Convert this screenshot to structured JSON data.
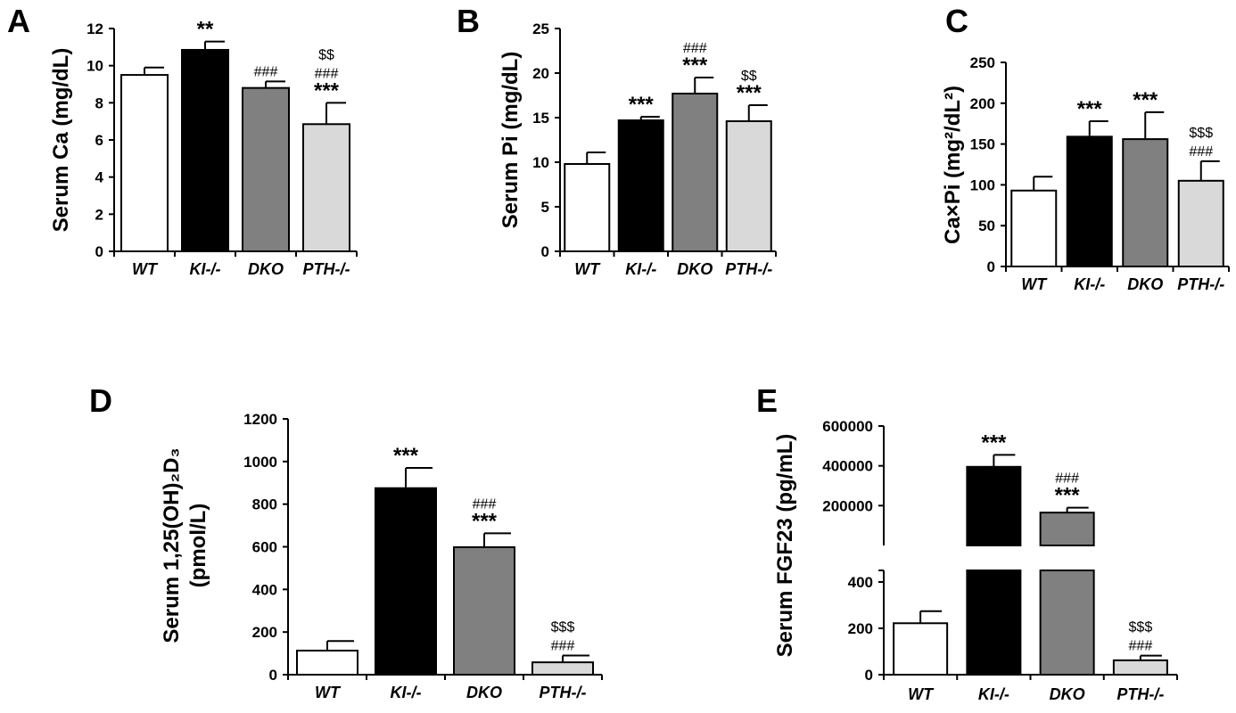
{
  "chart_data": [
    {
      "id": "A",
      "panel": "A",
      "type": "bar",
      "ylabel": "Serum Ca (mg/dL)",
      "ylim": [
        0,
        12
      ],
      "yticks": [
        "0",
        "2",
        "4",
        "6",
        "8",
        "10",
        "12"
      ],
      "categories": [
        "WT",
        "KI-/-",
        "DKO",
        "PTH-/-"
      ],
      "values": [
        9.5,
        10.85,
        8.8,
        6.85
      ],
      "errors": [
        0.4,
        0.45,
        0.35,
        1.15
      ],
      "colors": [
        "#ffffff",
        "#000000",
        "#808080",
        "#d9d9d9"
      ],
      "annotations": [
        [],
        [
          "**"
        ],
        [
          "###"
        ],
        [
          "$$",
          "###",
          "***"
        ]
      ]
    },
    {
      "id": "B",
      "panel": "B",
      "type": "bar",
      "ylabel": "Serum Pi (mg/dL)",
      "ylim": [
        0,
        25
      ],
      "yticks": [
        "0",
        "5",
        "10",
        "15",
        "20",
        "25"
      ],
      "categories": [
        "WT",
        "KI-/-",
        "DKO",
        "PTH-/-"
      ],
      "values": [
        9.8,
        14.7,
        17.7,
        14.6
      ],
      "errors": [
        1.3,
        0.4,
        1.8,
        1.8
      ],
      "colors": [
        "#ffffff",
        "#000000",
        "#808080",
        "#d9d9d9"
      ],
      "annotations": [
        [],
        [
          "***"
        ],
        [
          "###",
          "***"
        ],
        [
          "$$",
          "***"
        ]
      ]
    },
    {
      "id": "C",
      "panel": "C",
      "type": "bar",
      "ylabel": "Ca×Pi (mg²/dL²)",
      "ylim": [
        0,
        250
      ],
      "yticks": [
        "0",
        "50",
        "100",
        "150",
        "200",
        "250"
      ],
      "categories": [
        "WT",
        "KI-/-",
        "DKO",
        "PTH-/-"
      ],
      "values": [
        93,
        159,
        156,
        105
      ],
      "errors": [
        17,
        19,
        33,
        24
      ],
      "colors": [
        "#ffffff",
        "#000000",
        "#808080",
        "#d9d9d9"
      ],
      "annotations": [
        [],
        [
          "***"
        ],
        [
          "***"
        ],
        [
          "$$$",
          "###"
        ]
      ]
    },
    {
      "id": "D",
      "panel": "D",
      "type": "bar",
      "ylabel_lines": [
        "Serum 1,25(OH)₂D₃",
        "(pmol/L)"
      ],
      "ylim": [
        0,
        1200
      ],
      "yticks": [
        "0",
        "200",
        "400",
        "600",
        "800",
        "1000",
        "1200"
      ],
      "categories": [
        "WT",
        "KI-/-",
        "DKO",
        "PTH-/-"
      ],
      "values": [
        113,
        875,
        598,
        58
      ],
      "errors": [
        45,
        95,
        65,
        32
      ],
      "colors": [
        "#ffffff",
        "#000000",
        "#808080",
        "#d9d9d9"
      ],
      "annotations": [
        [],
        [
          "***"
        ],
        [
          "###",
          "***"
        ],
        [
          "$$$",
          "###"
        ]
      ]
    },
    {
      "id": "E",
      "panel": "E",
      "type": "bar",
      "ylabel": "Serum FGF23 (pg/mL)",
      "broken_axis": true,
      "upper_ylim": [
        0,
        600000
      ],
      "upper_yticks": [
        "200000",
        "400000",
        "600000"
      ],
      "lower_ylim": [
        0,
        450
      ],
      "lower_yticks": [
        "0",
        "200",
        "400"
      ],
      "categories": [
        "WT",
        "KI-/-",
        "DKO",
        "PTH-/-"
      ],
      "values": [
        222,
        395000,
        165000,
        62
      ],
      "errors": [
        52,
        60000,
        25000,
        20
      ],
      "colors": [
        "#ffffff",
        "#000000",
        "#808080",
        "#d9d9d9"
      ],
      "annotations": [
        [],
        [
          "***"
        ],
        [
          "###",
          "***"
        ],
        [
          "$$$",
          "###"
        ]
      ]
    }
  ]
}
